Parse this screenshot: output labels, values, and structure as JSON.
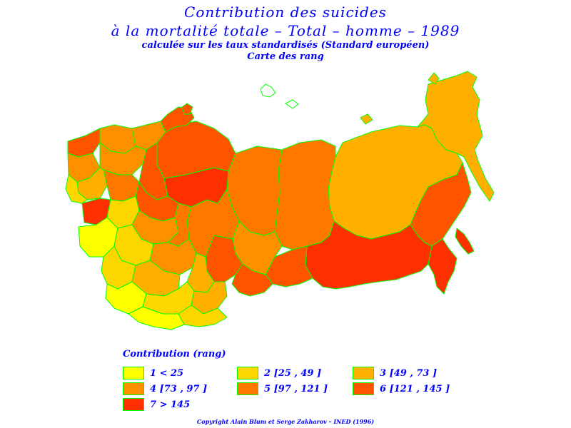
{
  "title": {
    "line1": "Contribution des suicides",
    "line2": "à la mortalité totale  –  Total  –  homme  –  1989",
    "line3": "calculée sur les taux standardisés (Standard européen)",
    "line4": "Carte des rang"
  },
  "legend": {
    "title": "Contribution (rang)",
    "items": [
      {
        "label": "1  <  25",
        "color": "#ffff00"
      },
      {
        "label": "2 [25 , 49 ]",
        "color": "#ffd700"
      },
      {
        "label": "3 [49 , 73 ]",
        "color": "#ffb000"
      },
      {
        "label": "4 [73 , 97 ]",
        "color": "#ff9000"
      },
      {
        "label": "5 [97 , 121 ]",
        "color": "#ff7800"
      },
      {
        "label": "6 [121 , 145 ]",
        "color": "#ff5500"
      },
      {
        "label": "7  >  145",
        "color": "#ff3000"
      }
    ]
  },
  "map": {
    "border_color": "#00ff00"
  },
  "copyright": "Copyright Alain Blum et Serge Zakharov  –  INED (1996)"
}
